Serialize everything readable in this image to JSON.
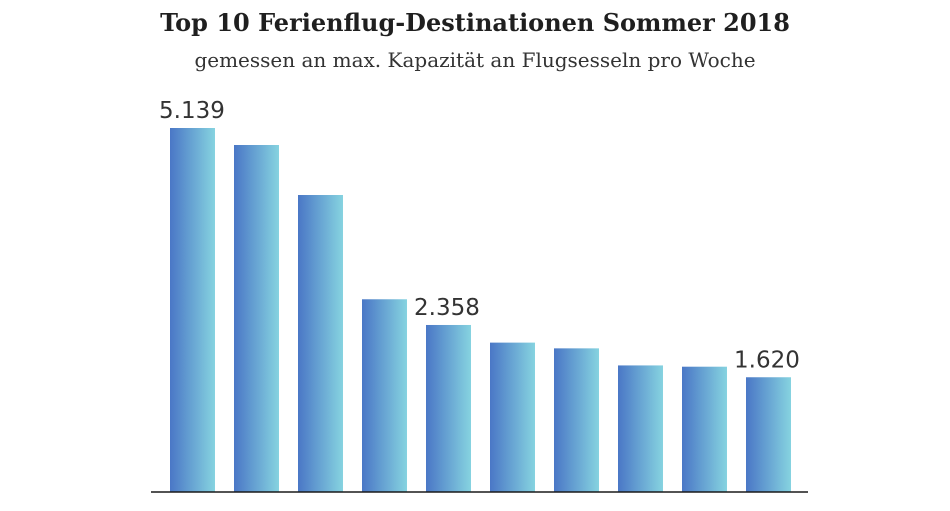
{
  "chart_data": {
    "type": "bar",
    "title": "Top 10 Ferienflug-Destinationen Sommer 2018",
    "subtitle": "gemessen an max. Kapazität an Flugsesseln pro Woche",
    "xlabel": "",
    "ylabel": "",
    "ylim": [
      0,
      5139
    ],
    "grid": false,
    "legend": "none",
    "bar_gradient": [
      "#4a77c6",
      "#86d3e0"
    ],
    "baseline_color": "#1a1a1a",
    "values": [
      5139,
      4899,
      4193,
      2721,
      2358,
      2109,
      2028,
      1787,
      1769,
      1620
    ],
    "value_labels": [
      "5.139",
      "",
      "",
      "",
      "2.358",
      "",
      "",
      "",
      "",
      "1.620"
    ]
  }
}
